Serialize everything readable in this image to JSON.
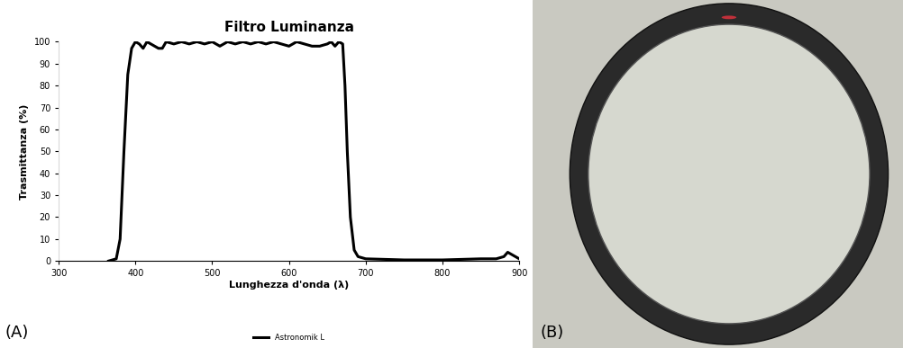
{
  "chart_data": {
    "type": "line",
    "title": "Filtro Luminanza",
    "x_label": "Lunghezza d'onda (λ)",
    "y_label": "Trasmittanza (%)",
    "annotations": [
      "(A)",
      "(B)"
    ],
    "x": [
      365,
      375,
      380,
      385,
      390,
      395,
      400,
      405,
      410,
      415,
      420,
      425,
      430,
      435,
      440,
      450,
      460,
      470,
      480,
      490,
      500,
      510,
      520,
      530,
      540,
      550,
      560,
      570,
      580,
      590,
      600,
      610,
      620,
      630,
      640,
      650,
      655,
      660,
      665,
      670,
      673,
      676,
      680,
      685,
      690,
      700,
      750,
      800,
      850,
      870,
      880,
      885,
      890,
      895,
      900
    ],
    "series": [
      {
        "name": "Astronomik L",
        "color": "#000000",
        "values": [
          0,
          1,
          10,
          50,
          85,
          97,
          100,
          99,
          97,
          100,
          99,
          98,
          97,
          97,
          100,
          99,
          100,
          99,
          100,
          99,
          100,
          98,
          100,
          99,
          100,
          99,
          100,
          99,
          100,
          99,
          98,
          100,
          99,
          98,
          98,
          99,
          100,
          98,
          100,
          99,
          80,
          50,
          20,
          5,
          2,
          1,
          0.5,
          0.5,
          1,
          1,
          2,
          4,
          3,
          2,
          1
        ]
      }
    ],
    "xlim": [
      300,
      900
    ],
    "xticks": [
      300,
      400,
      500,
      600,
      700,
      800,
      900
    ],
    "ylim": [
      0,
      100
    ],
    "yticks": [
      0,
      10,
      20,
      30,
      40,
      50,
      60,
      70,
      80,
      90,
      100
    ],
    "grid": false,
    "legend": "lower center"
  }
}
